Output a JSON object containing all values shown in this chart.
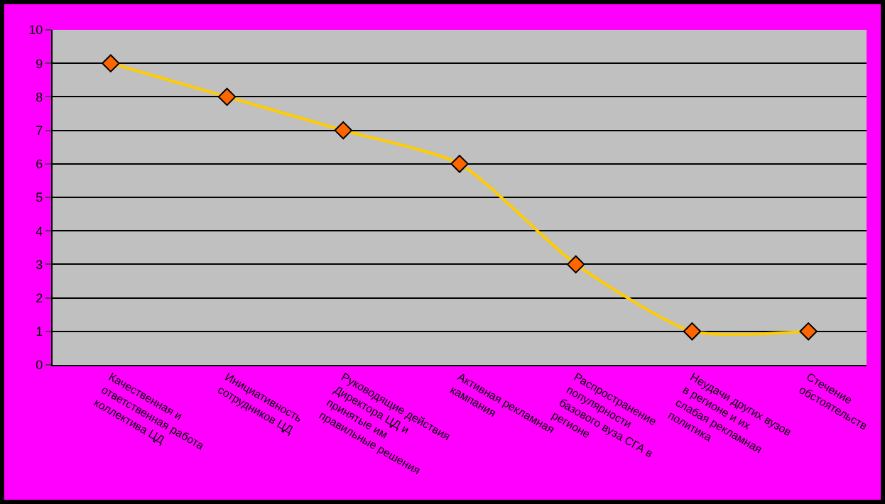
{
  "chart_data": {
    "type": "line",
    "categories": [
      "Качественная и ответственная работа коллектива ЦД",
      "Инициативность сотрудников ЦД",
      "Руководящие действия Директора ЦД и принятые им правильные решения",
      "Активная рекламная кампания",
      "Распространение популярности базового вуза СГА в регионе",
      "Неудачи других вузов в регионе и их слабая рекламная политика",
      "Стечение обстоятельств"
    ],
    "series": [
      {
        "color": "#ffcc00",
        "values": [
          9,
          8,
          7,
          6,
          3,
          1,
          1
        ]
      }
    ],
    "ylim": [
      0,
      10
    ],
    "yticks": [
      0,
      1,
      2,
      3,
      4,
      5,
      6,
      7,
      8,
      9,
      10
    ],
    "grid": "y",
    "marker": "diamond",
    "line_style": "solid",
    "legend": false
  }
}
